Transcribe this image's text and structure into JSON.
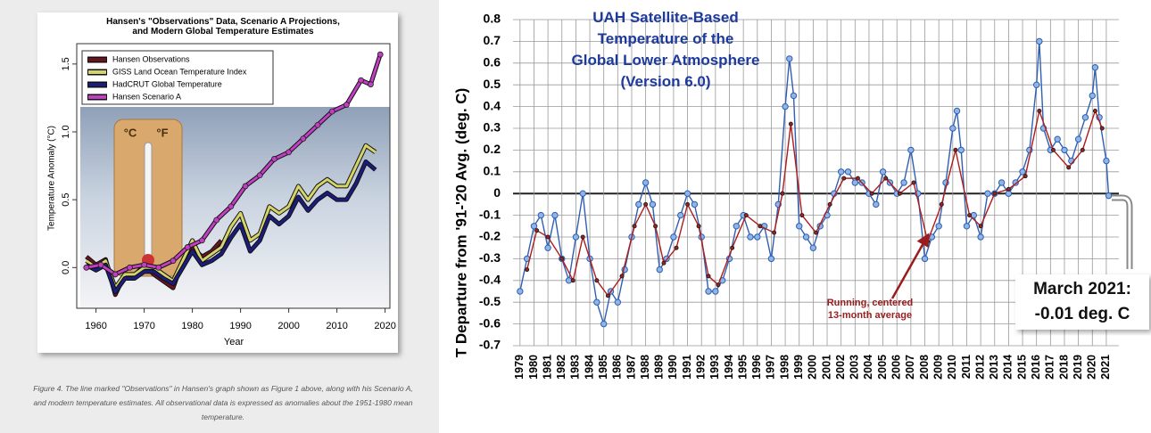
{
  "chart_data": [
    {
      "type": "line",
      "title": "Hansen's \"Observations\" Data, Scenario A Projections,\nand Modern Global Temperature Estimates",
      "xlabel": "Year",
      "ylabel": "Temperature Anomaly (°C)",
      "caption": "Figure 4. The line marked \"Observations\" in Hansen's graph shown as Figure 1 above, along with his Scenario A, and modern temperature estimates. All observational data is expressed as anomalies about the 1951-1980 mean temperature.",
      "image_labels": [
        "°C",
        "°F"
      ],
      "xlim": [
        1956,
        2021
      ],
      "xticks": [
        1960,
        1970,
        1980,
        1990,
        2000,
        2010,
        2020
      ],
      "ylim": [
        -0.3,
        1.65
      ],
      "yticks": [
        {
          "value": 0,
          "label": "0.0"
        },
        {
          "value": 0.5,
          "label": "0.5"
        },
        {
          "value": 1,
          "label": "1.0"
        },
        {
          "value": 1.5,
          "label": "1.5"
        }
      ],
      "legend": "upper left",
      "series": [
        {
          "name": "Hansen Observations",
          "color": "#6b1420",
          "x": [
            1958,
            1960,
            1962,
            1964,
            1966,
            1968,
            1970,
            1972,
            1974,
            1976,
            1978,
            1980,
            1982,
            1984,
            1986
          ],
          "values": [
            0.08,
            0.02,
            0.06,
            -0.2,
            -0.05,
            -0.06,
            0.02,
            -0.05,
            -0.1,
            -0.15,
            0.05,
            0.15,
            0.08,
            0.12,
            0.2
          ]
        },
        {
          "name": "GISS Land Ocean Temperature Index",
          "color": "#d4d46a",
          "x": [
            1958,
            1960,
            1962,
            1964,
            1966,
            1968,
            1970,
            1972,
            1974,
            1976,
            1978,
            1980,
            1982,
            1984,
            1986,
            1988,
            1990,
            1992,
            1994,
            1996,
            1998,
            2000,
            2002,
            2004,
            2006,
            2008,
            2010,
            2012,
            2014,
            2016,
            2018
          ],
          "values": [
            0.05,
            0.0,
            0.05,
            -0.15,
            -0.05,
            -0.05,
            0.0,
            0.0,
            -0.05,
            -0.1,
            0.05,
            0.2,
            0.05,
            0.1,
            0.15,
            0.3,
            0.4,
            0.2,
            0.25,
            0.45,
            0.4,
            0.45,
            0.6,
            0.5,
            0.6,
            0.65,
            0.6,
            0.6,
            0.75,
            0.9,
            0.85
          ]
        },
        {
          "name": "HadCRUT Global Temperature",
          "color": "#1c1c7a",
          "x": [
            1958,
            1960,
            1962,
            1964,
            1966,
            1968,
            1970,
            1972,
            1974,
            1976,
            1978,
            1980,
            1982,
            1984,
            1986,
            1988,
            1990,
            1992,
            1994,
            1996,
            1998,
            2000,
            2002,
            2004,
            2006,
            2008,
            2010,
            2012,
            2014,
            2016,
            2018
          ],
          "values": [
            0.02,
            -0.02,
            0.02,
            -0.18,
            -0.08,
            -0.08,
            -0.03,
            -0.03,
            -0.08,
            -0.12,
            0.0,
            0.12,
            0.02,
            0.05,
            0.1,
            0.22,
            0.32,
            0.12,
            0.2,
            0.38,
            0.32,
            0.38,
            0.52,
            0.42,
            0.5,
            0.55,
            0.5,
            0.5,
            0.62,
            0.78,
            0.72
          ]
        },
        {
          "name": "Hansen Scenario A",
          "color": "#c23ec2",
          "x": [
            1958,
            1961,
            1964,
            1967,
            1970,
            1973,
            1976,
            1979,
            1982,
            1985,
            1988,
            1991,
            1994,
            1997,
            2000,
            2003,
            2006,
            2009,
            2012,
            2015,
            2017,
            2019
          ],
          "values": [
            0.0,
            0.02,
            -0.05,
            0.0,
            0.02,
            0.0,
            0.05,
            0.15,
            0.2,
            0.35,
            0.45,
            0.6,
            0.68,
            0.8,
            0.85,
            0.95,
            1.05,
            1.15,
            1.2,
            1.38,
            1.35,
            1.57
          ]
        }
      ]
    },
    {
      "type": "line",
      "title": "UAH Satellite-Based\nTemperature of the\nGlobal Lower Atmosphere\n(Version 6.0)",
      "ylabel": "T Departure from '91-'20 Avg. (deg. C)",
      "annotations": [
        "Running, centered\n13-month average",
        "March 2021:\n-0.01 deg. C"
      ],
      "xlim": [
        1978.5,
        2021.9
      ],
      "xticks": [
        1979,
        1980,
        1981,
        1982,
        1983,
        1984,
        1985,
        1986,
        1987,
        1988,
        1989,
        1990,
        1991,
        1992,
        1993,
        1994,
        1995,
        1996,
        1997,
        1998,
        1999,
        2000,
        2001,
        2002,
        2003,
        2004,
        2005,
        2006,
        2007,
        2008,
        2009,
        2010,
        2011,
        2012,
        2013,
        2014,
        2015,
        2016,
        2017,
        2018,
        2019,
        2020,
        2021
      ],
      "ylim": [
        -0.7,
        0.8
      ],
      "yticks": [
        -0.7,
        -0.6,
        -0.5,
        -0.4,
        -0.3,
        -0.2,
        -0.1,
        0,
        0.1,
        0.2,
        0.3,
        0.4,
        0.5,
        0.6,
        0.7,
        0.8
      ],
      "grid": true,
      "series": [
        {
          "color": "#2f5fb3",
          "marker": "circle",
          "x": [
            1979.0,
            1979.5,
            1980.0,
            1980.5,
            1981.0,
            1981.5,
            1982.0,
            1982.5,
            1983.0,
            1983.5,
            1984.0,
            1984.5,
            1985.0,
            1985.5,
            1986.0,
            1986.5,
            1987.0,
            1987.5,
            1988.0,
            1988.5,
            1989.0,
            1989.5,
            1990.0,
            1990.5,
            1991.0,
            1991.5,
            1992.0,
            1992.5,
            1993.0,
            1993.5,
            1994.0,
            1994.5,
            1995.0,
            1995.5,
            1996.0,
            1996.5,
            1997.0,
            1997.5,
            1998.0,
            1998.3,
            1998.6,
            1999.0,
            1999.5,
            2000.0,
            2000.5,
            2001.0,
            2001.5,
            2002.0,
            2002.5,
            2003.0,
            2003.5,
            2004.0,
            2004.5,
            2005.0,
            2005.5,
            2006.0,
            2006.5,
            2007.0,
            2007.5,
            2008.0,
            2008.5,
            2009.0,
            2009.5,
            2010.0,
            2010.3,
            2010.6,
            2011.0,
            2011.5,
            2012.0,
            2012.5,
            2013.0,
            2013.5,
            2014.0,
            2014.5,
            2015.0,
            2015.5,
            2016.0,
            2016.2,
            2016.5,
            2017.0,
            2017.5,
            2018.0,
            2018.5,
            2019.0,
            2019.5,
            2020.0,
            2020.2,
            2020.5,
            2021.0,
            2021.17
          ],
          "values": [
            -0.45,
            -0.3,
            -0.15,
            -0.1,
            -0.25,
            -0.1,
            -0.3,
            -0.4,
            -0.2,
            0.0,
            -0.3,
            -0.5,
            -0.6,
            -0.45,
            -0.5,
            -0.35,
            -0.2,
            -0.05,
            0.05,
            -0.05,
            -0.35,
            -0.3,
            -0.2,
            -0.1,
            0.0,
            -0.05,
            -0.2,
            -0.45,
            -0.45,
            -0.4,
            -0.3,
            -0.15,
            -0.1,
            -0.2,
            -0.2,
            -0.15,
            -0.3,
            -0.05,
            0.4,
            0.62,
            0.45,
            -0.15,
            -0.2,
            -0.25,
            -0.15,
            -0.1,
            0.0,
            0.1,
            0.1,
            0.05,
            0.05,
            0.0,
            -0.05,
            0.1,
            0.05,
            0.0,
            0.05,
            0.2,
            0.0,
            -0.3,
            -0.2,
            -0.15,
            0.05,
            0.3,
            0.38,
            0.2,
            -0.15,
            -0.1,
            -0.2,
            0.0,
            0.0,
            0.05,
            0.0,
            0.05,
            0.1,
            0.2,
            0.5,
            0.7,
            0.3,
            0.2,
            0.25,
            0.2,
            0.15,
            0.25,
            0.35,
            0.45,
            0.58,
            0.35,
            0.15,
            -0.01
          ]
        },
        {
          "color": "#b01c1c",
          "x": [
            1979.5,
            1980.2,
            1981.0,
            1982.0,
            1982.8,
            1983.5,
            1984.5,
            1985.3,
            1986.3,
            1987.2,
            1988.0,
            1988.7,
            1989.3,
            1990.2,
            1991.0,
            1991.8,
            1992.5,
            1993.2,
            1994.2,
            1995.2,
            1996.2,
            1997.2,
            1997.8,
            1998.4,
            1999.2,
            2000.2,
            2001.2,
            2002.2,
            2003.2,
            2004.2,
            2005.2,
            2006.2,
            2007.2,
            2008.2,
            2009.2,
            2010.2,
            2011.2,
            2012.0,
            2013.0,
            2014.0,
            2015.2,
            2016.2,
            2017.2,
            2018.3,
            2019.3,
            2020.2,
            2020.7
          ],
          "values": [
            -0.35,
            -0.17,
            -0.2,
            -0.3,
            -0.4,
            -0.2,
            -0.4,
            -0.47,
            -0.38,
            -0.15,
            -0.05,
            -0.15,
            -0.32,
            -0.25,
            -0.05,
            -0.15,
            -0.38,
            -0.42,
            -0.25,
            -0.1,
            -0.15,
            -0.18,
            0.0,
            0.32,
            -0.1,
            -0.18,
            -0.05,
            0.07,
            0.07,
            0.0,
            0.07,
            0.0,
            0.05,
            -0.22,
            -0.05,
            0.2,
            -0.1,
            -0.15,
            0.0,
            0.02,
            0.08,
            0.38,
            0.2,
            0.12,
            0.2,
            0.38,
            0.3
          ]
        }
      ]
    }
  ]
}
